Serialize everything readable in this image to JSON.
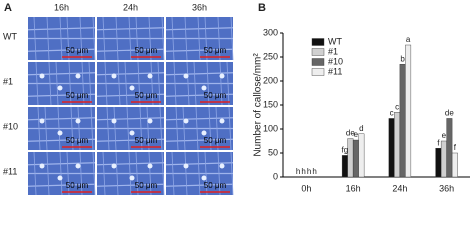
{
  "panel_a": {
    "label": "A",
    "columns": [
      "16h",
      "24h",
      "36h"
    ],
    "rows": [
      "WT",
      "#1",
      "#10",
      "#11"
    ],
    "scale_bar": "50 μm"
  },
  "chart_data": {
    "type": "bar",
    "panel_label": "B",
    "y_label": "Number of callose/mm²",
    "categories": [
      "0h",
      "16h",
      "24h",
      "36h"
    ],
    "series": [
      {
        "name": "WT",
        "color": "#111111",
        "values": [
          0,
          45,
          122,
          60
        ],
        "annotations": [
          "h",
          "fg",
          "c",
          "f"
        ]
      },
      {
        "name": "#1",
        "color": "#d0d0d0",
        "values": [
          0,
          80,
          135,
          75
        ],
        "annotations": [
          "h",
          "de",
          "c",
          "e"
        ]
      },
      {
        "name": "#10",
        "color": "#666666",
        "values": [
          0,
          77,
          235,
          122
        ],
        "annotations": [
          "h",
          "e",
          "b",
          "de"
        ]
      },
      {
        "name": "#11",
        "color": "#eeeeee",
        "values": [
          0,
          90,
          275,
          50
        ],
        "annotations": [
          "h",
          "d",
          "a",
          "f"
        ]
      }
    ],
    "ylim": [
      0,
      300
    ],
    "yticks": [
      0,
      50,
      100,
      150,
      200,
      250,
      300
    ],
    "grid": false
  }
}
